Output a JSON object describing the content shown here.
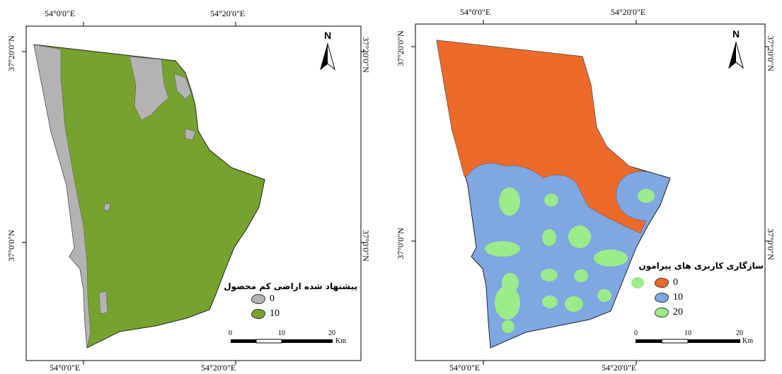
{
  "left_map": {
    "top_labels": [
      "54°0'0\"E",
      "54°20'0\"E"
    ],
    "bottom_labels": [
      "54°0'0\"E",
      "54°20'0\"E"
    ],
    "left_labels": [
      "37°20'0\"N",
      "37°0'0\"N"
    ],
    "right_labels": [
      "37°20'0\"N",
      "37°0'0\"N"
    ],
    "north_label": "N",
    "legend": {
      "title": "پیشنهاد شده اراضی کم محصول",
      "items": [
        {
          "label": "0",
          "color": "#b3b3b3"
        },
        {
          "label": "10",
          "color": "#78a22f"
        }
      ]
    },
    "scale": {
      "ticks": [
        "0",
        "10",
        "20"
      ],
      "unit": "Km"
    }
  },
  "right_map": {
    "top_labels": [
      "54°0'0\"E",
      "54°20'0\"E"
    ],
    "bottom_labels": [
      "54°0'0\"E",
      "54°20'0\"E"
    ],
    "left_labels": [
      "37°20'0\"N",
      "37°0'0\"N"
    ],
    "right_labels": [
      "37°20'0\"N",
      "37°0'0\"N"
    ],
    "north_label": "N",
    "legend": {
      "title": "سازگاری کاربری های پیرامون",
      "items": [
        {
          "label": "0",
          "color": "#ee6a2a"
        },
        {
          "label": "10",
          "color": "#7fa7e2"
        },
        {
          "label": "20",
          "color": "#9ceb8a"
        }
      ]
    },
    "scale": {
      "ticks": [
        "0",
        "10",
        "20"
      ],
      "unit": "Km"
    }
  }
}
